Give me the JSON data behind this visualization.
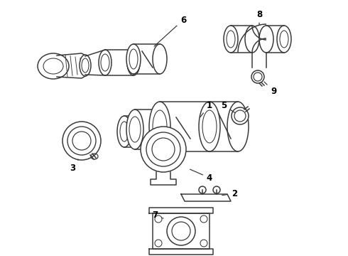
{
  "background_color": "#ffffff",
  "line_color": "#3a3a3a",
  "line_width": 1.1,
  "label_color": "#000000",
  "label_fontsize": 8.5
}
